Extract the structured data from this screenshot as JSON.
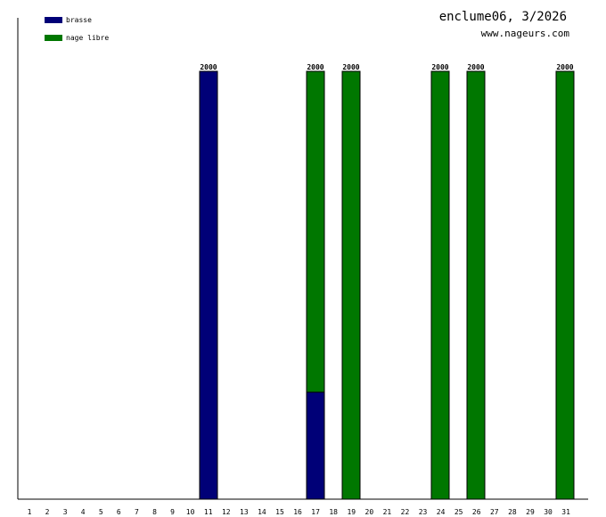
{
  "header": {
    "title": "enclume06, 3/2026",
    "subtitle": "www.nageurs.com"
  },
  "colors": {
    "brasse": "#000077",
    "nage_libre": "#007700"
  },
  "chart_data": {
    "type": "bar",
    "stacked": true,
    "title": "enclume06, 3/2026",
    "xlabel": "",
    "ylabel": "",
    "ylim": [
      0,
      2000
    ],
    "grid": false,
    "legend_position": "top-left",
    "categories": [
      "1",
      "2",
      "3",
      "4",
      "5",
      "6",
      "7",
      "8",
      "9",
      "10",
      "11",
      "12",
      "13",
      "14",
      "15",
      "16",
      "17",
      "18",
      "19",
      "20",
      "21",
      "22",
      "23",
      "24",
      "25",
      "26",
      "27",
      "28",
      "29",
      "30",
      "31"
    ],
    "series": [
      {
        "name": "brasse",
        "color": "#000077",
        "values": [
          0,
          0,
          0,
          0,
          0,
          0,
          0,
          0,
          0,
          0,
          2000,
          0,
          0,
          0,
          0,
          0,
          500,
          0,
          0,
          0,
          0,
          0,
          0,
          0,
          0,
          0,
          0,
          0,
          0,
          0,
          0
        ]
      },
      {
        "name": "nage libre",
        "color": "#007700",
        "values": [
          0,
          0,
          0,
          0,
          0,
          0,
          0,
          0,
          0,
          0,
          0,
          0,
          0,
          0,
          0,
          0,
          1500,
          0,
          2000,
          0,
          0,
          0,
          0,
          2000,
          0,
          2000,
          0,
          0,
          0,
          0,
          2000
        ]
      }
    ],
    "totals_labels": [
      {
        "day": "11",
        "label": "2000"
      },
      {
        "day": "17",
        "label": "2000"
      },
      {
        "day": "19",
        "label": "2000"
      },
      {
        "day": "24",
        "label": "2000"
      },
      {
        "day": "26",
        "label": "2000"
      },
      {
        "day": "31",
        "label": "2000"
      }
    ]
  }
}
